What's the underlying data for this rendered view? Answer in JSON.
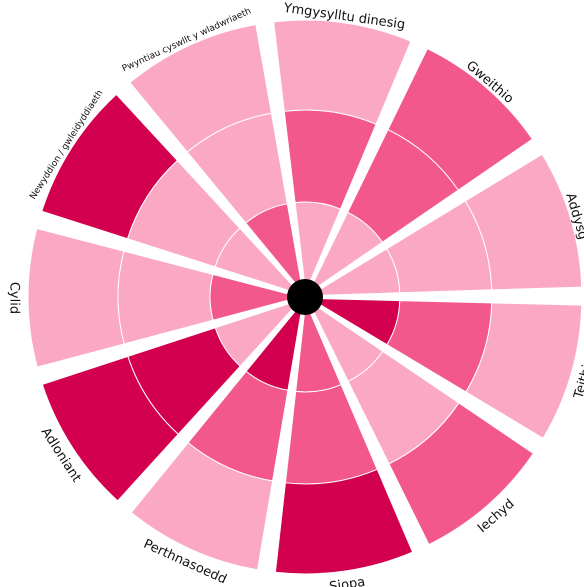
{
  "chart_data": {
    "type": "radial-rings",
    "categories": [
      "Ymgysylltu dinesig",
      "Gweithio",
      "Addysg",
      "Teithio",
      "Iechyd",
      "Siopa",
      "Perthnasoedd",
      "Adloniant",
      "Cylid",
      "Newyddion / gwleidyddiaeth",
      "Pwyntiau cyswllt y wladwriaeth"
    ],
    "levels": [
      [
        1,
        2,
        1
      ],
      [
        1,
        2,
        2
      ],
      [
        1,
        1,
        1
      ],
      [
        3,
        2,
        1
      ],
      [
        1,
        1,
        2
      ],
      [
        2,
        2,
        3
      ],
      [
        3,
        2,
        1
      ],
      [
        1,
        3,
        3
      ],
      [
        2,
        1,
        1
      ],
      [
        1,
        1,
        3
      ],
      [
        2,
        1,
        1
      ]
    ],
    "colors": [
      "#fba8c4",
      "#f3588c",
      "#d2004e"
    ]
  }
}
